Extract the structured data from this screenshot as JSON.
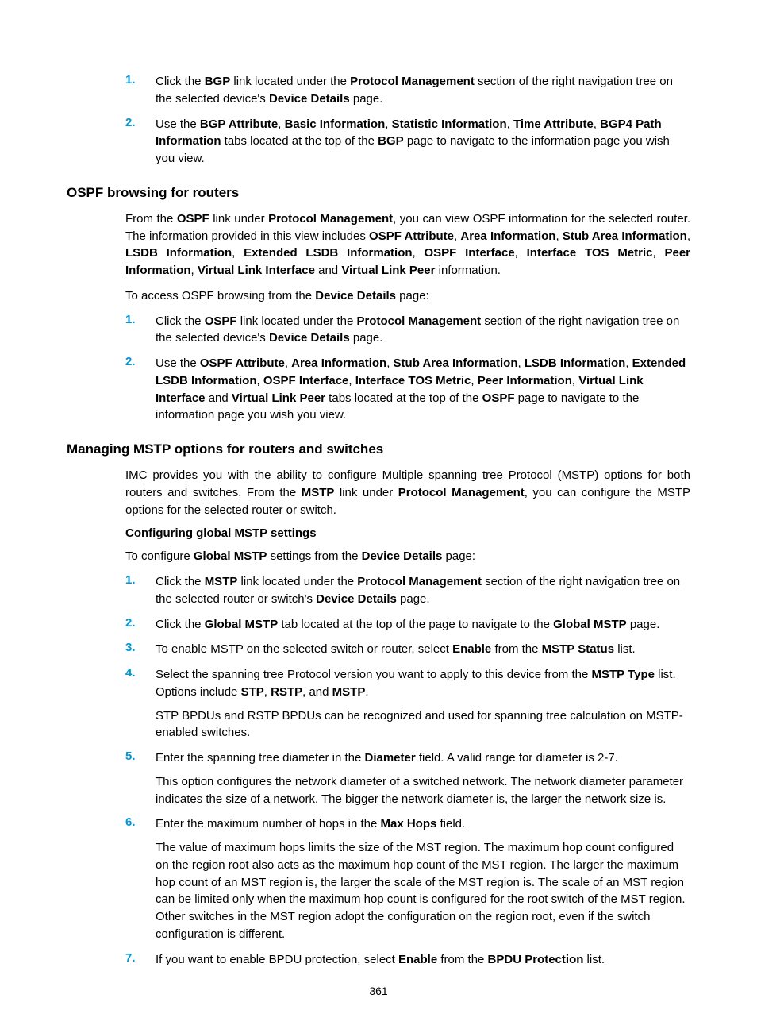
{
  "colors": {
    "list_number": "#0096d6",
    "text": "#000000",
    "background": "#ffffff"
  },
  "typography": {
    "body_fontsize": 15,
    "h2_fontsize": 17,
    "h3_fontsize": 15,
    "line_height": 1.45,
    "font_family": "Arial, Helvetica, sans-serif"
  },
  "page_number": "361",
  "sections": [
    {
      "type": "ordered_list",
      "items": [
        {
          "num": "1.",
          "html": "Click the <b>BGP</b> link located under the <b>Protocol Management</b> section of the right navigation tree on the selected device's <b>Device Details</b> page."
        },
        {
          "num": "2.",
          "html": "Use the <b>BGP Attribute</b>, <b>Basic Information</b>, <b>Statistic Information</b>, <b>Time Attribute</b>, <b>BGP4 Path Information</b> tabs located at the top of the <b>BGP</b> page to navigate to the information page you wish you view."
        }
      ]
    },
    {
      "type": "h2",
      "text": "OSPF browsing for routers"
    },
    {
      "type": "para",
      "html": "From the <b>OSPF</b> link under <b>Protocol Management</b>, you can view OSPF information for the selected router. The information provided in this view includes <b>OSPF Attribute</b>, <b>Area Information</b>, <b>Stub Area Information</b>, <b>LSDB Information</b>, <b>Extended LSDB Information</b>, <b>OSPF Interface</b>, <b>Interface TOS Metric</b>, <b>Peer Information</b>, <b>Virtual Link Interface</b> and <b>Virtual Link Peer</b> information."
    },
    {
      "type": "para-left",
      "html": "To access OSPF browsing from the <b>Device Details</b> page:"
    },
    {
      "type": "ordered_list",
      "items": [
        {
          "num": "1.",
          "html": "Click the <b>OSPF</b> link located under the <b>Protocol Management</b> section of the right navigation tree on the selected device's <b>Device Details</b> page."
        },
        {
          "num": "2.",
          "html": "Use the <b>OSPF Attribute</b>, <b>Area Information</b>, <b>Stub Area Information</b>, <b>LSDB Information</b>, <b>Extended LSDB Information</b>, <b>OSPF Interface</b>, <b>Interface TOS Metric</b>, <b>Peer Information</b>, <b>Virtual Link Interface</b> and <b>Virtual Link Peer</b> tabs located at the top of the <b>OSPF</b> page to navigate to the information page you wish you view."
        }
      ]
    },
    {
      "type": "h2",
      "text": "Managing MSTP options for routers and switches"
    },
    {
      "type": "para",
      "html": "IMC provides you with the ability to configure Multiple spanning tree Protocol (MSTP) options for both routers and switches. From the <b>MSTP</b> link under <b>Protocol Management</b>, you can configure the MSTP options for the selected router or switch."
    },
    {
      "type": "h3",
      "text": "Configuring global MSTP settings"
    },
    {
      "type": "para-left",
      "html": "To configure <b>Global MSTP</b> settings from the <b>Device Details</b> page:"
    },
    {
      "type": "ordered_list",
      "items": [
        {
          "num": "1.",
          "html": "Click the <b>MSTP</b> link located under the <b>Protocol Management</b> section of the right navigation tree on the selected router or switch's <b>Device Details</b> page."
        },
        {
          "num": "2.",
          "html": "Click the <b>Global MSTP</b> tab located at the top of the page to navigate to the <b>Global MSTP</b> page."
        },
        {
          "num": "3.",
          "html": "To enable MSTP on the selected switch or router, select <b>Enable</b> from the <b>MSTP Status</b> list."
        },
        {
          "num": "4.",
          "html_parts": [
            "Select the spanning tree Protocol version you want to apply to this device from the <b>MSTP Type</b> list. Options include <b>STP</b>, <b>RSTP</b>, and <b>MSTP</b>.",
            "STP BPDUs and RSTP BPDUs can be recognized and used for spanning tree calculation on MSTP-enabled switches."
          ]
        },
        {
          "num": "5.",
          "html_parts": [
            "Enter the spanning tree diameter in the <b>Diameter</b> field. A valid range for diameter is 2-7.",
            "This option configures the network diameter of a switched network. The network diameter parameter indicates the size of a network. The bigger the network diameter is, the larger the network size is."
          ]
        },
        {
          "num": "6.",
          "html_parts": [
            "Enter the maximum number of hops in the <b>Max Hops</b> field.",
            "The value of maximum hops limits the size of the MST region. The maximum hop count configured on the region root also acts as the maximum hop count of the MST region. The larger the maximum hop count of an MST region is, the larger the scale of the MST region is. The scale of an MST region can be limited only when the maximum hop count is configured for the root switch of the MST region. Other switches in the MST region adopt the configuration on the region root, even if the switch configuration is different."
          ]
        },
        {
          "num": "7.",
          "html": "If you want to enable BPDU protection, select <b>Enable</b> from the <b>BPDU Protection</b> list."
        }
      ]
    }
  ]
}
